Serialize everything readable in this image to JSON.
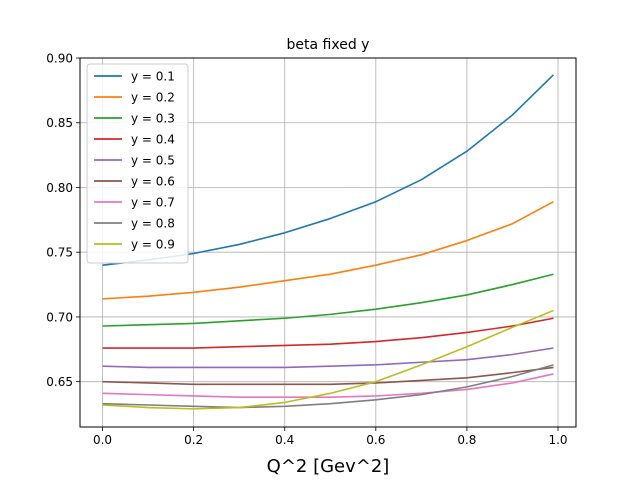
{
  "chart_data": {
    "type": "line",
    "title": "beta fixed y",
    "xlabel": "Q^2 [Gev^2]",
    "ylabel": "",
    "xlim": [
      -0.0495,
      1.0395
    ],
    "ylim": [
      0.615,
      0.9
    ],
    "xticks": [
      0.0,
      0.2,
      0.4,
      0.6,
      0.8,
      1.0
    ],
    "xtick_labels": [
      "0.0",
      "0.2",
      "0.4",
      "0.6",
      "0.8",
      "1.0"
    ],
    "yticks": [
      0.65,
      0.7,
      0.75,
      0.8,
      0.85,
      0.9
    ],
    "ytick_labels": [
      "0.65",
      "0.70",
      "0.75",
      "0.80",
      "0.85",
      "0.90"
    ],
    "grid": true,
    "legend_position": "upper-left",
    "x": [
      0.0,
      0.1,
      0.2,
      0.3,
      0.4,
      0.5,
      0.6,
      0.7,
      0.8,
      0.9,
      0.99
    ],
    "series": [
      {
        "name": "y = 0.1",
        "color": "#1f77b4",
        "values": [
          0.74,
          0.744,
          0.749,
          0.756,
          0.765,
          0.776,
          0.789,
          0.806,
          0.828,
          0.856,
          0.887
        ]
      },
      {
        "name": "y = 0.2",
        "color": "#ff7f0e",
        "values": [
          0.714,
          0.716,
          0.719,
          0.723,
          0.728,
          0.733,
          0.74,
          0.748,
          0.759,
          0.772,
          0.789
        ]
      },
      {
        "name": "y = 0.3",
        "color": "#2ca02c",
        "values": [
          0.693,
          0.694,
          0.695,
          0.697,
          0.699,
          0.702,
          0.706,
          0.711,
          0.717,
          0.725,
          0.733
        ]
      },
      {
        "name": "y = 0.4",
        "color": "#d62728",
        "values": [
          0.676,
          0.676,
          0.676,
          0.677,
          0.678,
          0.679,
          0.681,
          0.684,
          0.688,
          0.693,
          0.699
        ]
      },
      {
        "name": "y = 0.5",
        "color": "#9467bd",
        "values": [
          0.662,
          0.661,
          0.661,
          0.661,
          0.661,
          0.662,
          0.663,
          0.665,
          0.667,
          0.671,
          0.676
        ]
      },
      {
        "name": "y = 0.6",
        "color": "#8c564b",
        "values": [
          0.65,
          0.649,
          0.648,
          0.648,
          0.648,
          0.648,
          0.649,
          0.651,
          0.653,
          0.657,
          0.661
        ]
      },
      {
        "name": "y = 0.7",
        "color": "#e377c2",
        "values": [
          0.641,
          0.64,
          0.639,
          0.638,
          0.638,
          0.638,
          0.639,
          0.641,
          0.644,
          0.649,
          0.656
        ]
      },
      {
        "name": "y = 0.8",
        "color": "#7f7f7f",
        "values": [
          0.633,
          0.632,
          0.631,
          0.63,
          0.631,
          0.633,
          0.636,
          0.64,
          0.646,
          0.654,
          0.663
        ]
      },
      {
        "name": "y = 0.9",
        "color": "#bcbd22",
        "values": [
          0.632,
          0.63,
          0.629,
          0.63,
          0.634,
          0.641,
          0.65,
          0.663,
          0.677,
          0.692,
          0.705
        ]
      }
    ]
  }
}
